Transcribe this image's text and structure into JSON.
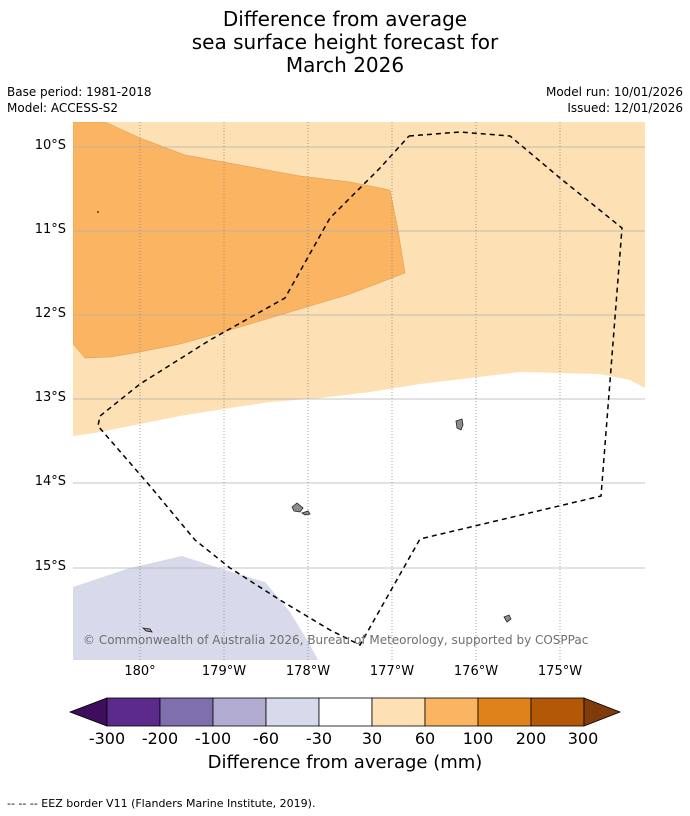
{
  "title": {
    "line1": "Difference from average",
    "line2": "sea surface height forecast for",
    "line3": "March 2026"
  },
  "meta": {
    "base_period": "Base period: 1981-2018",
    "model": "Model: ACCESS-S2",
    "model_run": "Model run: 10/01/2026",
    "issued": "Issued: 12/01/2026"
  },
  "map": {
    "lat_labels": [
      "10°S",
      "11°S",
      "12°S",
      "13°S",
      "14°S",
      "15°S"
    ],
    "lon_labels": [
      "180°",
      "179°W",
      "178°W",
      "177°W",
      "176°W",
      "175°W"
    ],
    "copyright": "© Commonwealth of Australia 2026, Bureau of Meteorology, supported by COSPPac",
    "colors": {
      "band_30_60": "#fde0b3",
      "band_60_100": "#fbb461",
      "band_neg60_neg30": "#d8d9ea",
      "land": "#8c8c8c",
      "background": "#ffffff"
    }
  },
  "colorbar": {
    "ticks": [
      "-300",
      "-200",
      "-100",
      "-60",
      "-30",
      "30",
      "60",
      "100",
      "200",
      "300"
    ],
    "colors": [
      "#3f0d5e",
      "#5b2a8a",
      "#7f6fad",
      "#b1abd1",
      "#d8d9ea",
      "#ffffff",
      "#fde0b3",
      "#fbb461",
      "#e0821a",
      "#b35806",
      "#7f3c0a"
    ],
    "label": "Difference from average (mm)"
  },
  "legend": {
    "eez_note": "--  --  -- EEZ border V11 (Flanders Marine Institute, 2019)."
  }
}
